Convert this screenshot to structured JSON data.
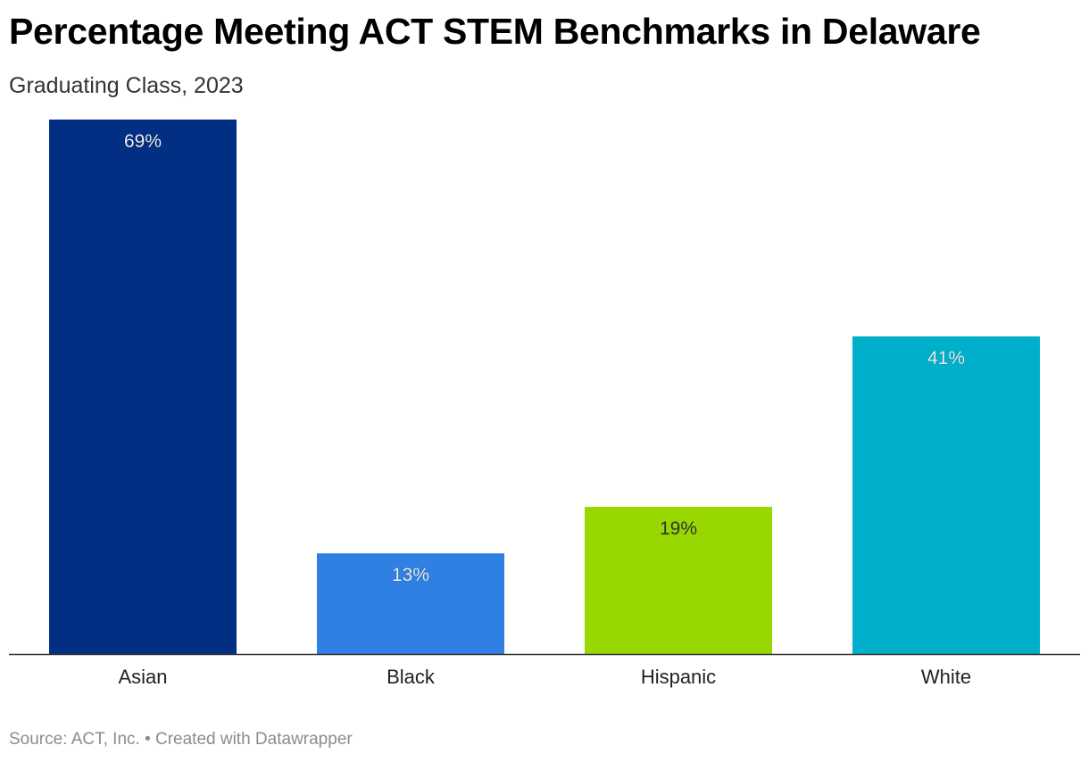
{
  "header": {
    "title": "Percentage Meeting ACT STEM Benchmarks in Delaware",
    "subtitle": "Graduating Class, 2023"
  },
  "footer": {
    "source": "Source: ACT, Inc. • Created with Datawrapper"
  },
  "chart_data": {
    "type": "bar",
    "title": "Percentage Meeting ACT STEM Benchmarks in Delaware",
    "subtitle": "Graduating Class, 2023",
    "categories": [
      "Asian",
      "Black",
      "Hispanic",
      "White"
    ],
    "values": [
      69,
      13,
      19,
      41
    ],
    "value_labels": [
      "69%",
      "13%",
      "19%",
      "41%"
    ],
    "colors": [
      "#022f83",
      "#2f80e2",
      "#98d700",
      "#00afc9"
    ],
    "xlabel": "",
    "ylabel": "",
    "ylim": [
      0,
      69
    ],
    "grid": false,
    "legend": "none"
  }
}
